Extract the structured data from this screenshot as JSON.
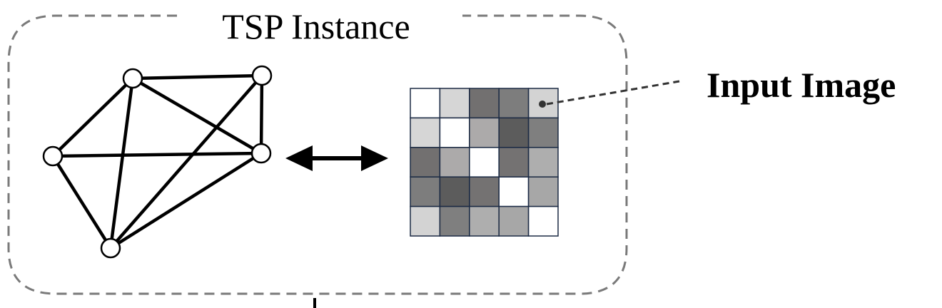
{
  "diagram": {
    "title": "TSP Instance",
    "callout_label": "Input Image",
    "graph": {
      "node_count": 5,
      "edges": [
        [
          0,
          1
        ],
        [
          0,
          3
        ],
        [
          0,
          4
        ],
        [
          1,
          2
        ],
        [
          1,
          3
        ],
        [
          1,
          4
        ],
        [
          2,
          3
        ],
        [
          2,
          4
        ],
        [
          3,
          4
        ]
      ]
    },
    "matrix": {
      "rows": 5,
      "cols": 5,
      "shades": [
        [
          "#ffffff",
          "#d6d6d6",
          "#727070",
          "#7d7d7d",
          "#d3d3d3"
        ],
        [
          "#d6d6d6",
          "#ffffff",
          "#acaaaa",
          "#5c5c5c",
          "#7f7f7f"
        ],
        [
          "#727070",
          "#acaaaa",
          "#ffffff",
          "#747272",
          "#aeaeae"
        ],
        [
          "#7d7d7d",
          "#5c5c5c",
          "#747272",
          "#ffffff",
          "#a7a7a7"
        ],
        [
          "#d3d3d3",
          "#7f7f7f",
          "#aeaeae",
          "#a7a7a7",
          "#ffffff"
        ]
      ]
    },
    "colors": {
      "frame": "#7a7a7a",
      "edge": "#000000",
      "cell_border": "#1b2a44"
    },
    "icons": {
      "double_arrow": "double-headed-arrow-icon"
    }
  }
}
